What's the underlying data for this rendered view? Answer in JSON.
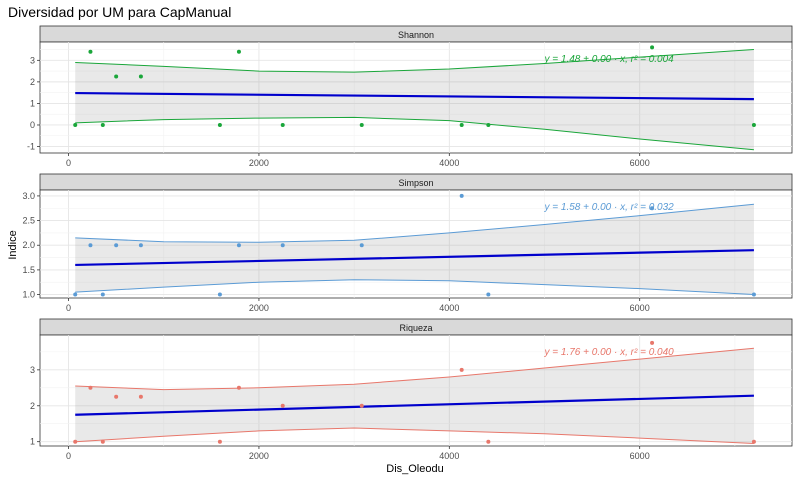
{
  "chart_data": {
    "type": "scatter",
    "title": "Diversidad por UM para CapManual",
    "xlabel": "Dis_Oleodu",
    "ylabel": "Indice",
    "xlim": [
      -300,
      7600
    ],
    "xticks": [
      0,
      2000,
      4000,
      6000
    ],
    "grid": true,
    "facets": [
      {
        "name": "Shannon",
        "color": "#1aa63a",
        "ylim": [
          -1.3,
          3.85
        ],
        "yticks": [
          -1,
          0,
          1,
          2,
          3
        ],
        "points": [
          [
            70,
            0
          ],
          [
            230,
            3.4
          ],
          [
            360,
            0
          ],
          [
            500,
            2.25
          ],
          [
            760,
            2.25
          ],
          [
            1590,
            0
          ],
          [
            1790,
            3.4
          ],
          [
            2250,
            0
          ],
          [
            3080,
            0
          ],
          [
            4130,
            0
          ],
          [
            4410,
            0
          ],
          [
            6130,
            3.6
          ],
          [
            7200,
            0
          ]
        ],
        "fit": {
          "x": [
            70,
            7200
          ],
          "y": [
            1.48,
            1.2
          ]
        },
        "band_upper": {
          "x": [
            70,
            1000,
            2000,
            3000,
            4000,
            5000,
            6000,
            7200
          ],
          "y": [
            2.9,
            2.72,
            2.5,
            2.45,
            2.6,
            2.85,
            3.15,
            3.5
          ]
        },
        "band_lower": {
          "x": [
            70,
            1000,
            2000,
            3000,
            4000,
            5000,
            6000,
            7200
          ],
          "y": [
            0.1,
            0.25,
            0.32,
            0.35,
            0.2,
            -0.2,
            -0.65,
            -1.15
          ]
        },
        "equation": "y = 1.48 + 0.00 · x,  r² = 0.004"
      },
      {
        "name": "Simpson",
        "color": "#5b9bd5",
        "ylim": [
          0.93,
          3.12
        ],
        "yticks": [
          1.0,
          1.5,
          2.0,
          2.5,
          3.0
        ],
        "points": [
          [
            70,
            1.0
          ],
          [
            230,
            2.0
          ],
          [
            360,
            1.0
          ],
          [
            500,
            2.0
          ],
          [
            760,
            2.0
          ],
          [
            1590,
            1.0
          ],
          [
            1790,
            2.0
          ],
          [
            2250,
            2.0
          ],
          [
            3080,
            2.0
          ],
          [
            4130,
            3.0
          ],
          [
            4410,
            1.0
          ],
          [
            6130,
            2.75
          ],
          [
            7200,
            1.0
          ]
        ],
        "fit": {
          "x": [
            70,
            7200
          ],
          "y": [
            1.6,
            1.9
          ]
        },
        "band_upper": {
          "x": [
            70,
            1000,
            2000,
            3000,
            4000,
            5000,
            6000,
            7200
          ],
          "y": [
            2.15,
            2.07,
            2.06,
            2.1,
            2.25,
            2.42,
            2.6,
            2.83
          ]
        },
        "band_lower": {
          "x": [
            70,
            1000,
            2000,
            3000,
            4000,
            5000,
            6000,
            7200
          ],
          "y": [
            1.05,
            1.15,
            1.25,
            1.3,
            1.28,
            1.2,
            1.12,
            1.0
          ]
        },
        "equation": "y = 1.58 + 0.00 · x,  r² = 0.032"
      },
      {
        "name": "Riqueza",
        "color": "#e8776b",
        "ylim": [
          0.88,
          3.97
        ],
        "yticks": [
          1,
          2,
          3
        ],
        "points": [
          [
            70,
            1.0
          ],
          [
            230,
            2.5
          ],
          [
            360,
            1.0
          ],
          [
            500,
            2.25
          ],
          [
            760,
            2.25
          ],
          [
            1590,
            1.0
          ],
          [
            1790,
            2.5
          ],
          [
            2250,
            2.0
          ],
          [
            3080,
            2.0
          ],
          [
            4130,
            3.0
          ],
          [
            4410,
            1.0
          ],
          [
            6130,
            3.75
          ],
          [
            7200,
            1.0
          ]
        ],
        "fit": {
          "x": [
            70,
            7200
          ],
          "y": [
            1.75,
            2.28
          ]
        },
        "band_upper": {
          "x": [
            70,
            1000,
            2000,
            3000,
            4000,
            5000,
            6000,
            7200
          ],
          "y": [
            2.55,
            2.45,
            2.5,
            2.6,
            2.8,
            3.05,
            3.3,
            3.6
          ]
        },
        "band_lower": {
          "x": [
            70,
            1000,
            2000,
            3000,
            4000,
            5000,
            6000,
            7200
          ],
          "y": [
            1.0,
            1.15,
            1.3,
            1.38,
            1.3,
            1.22,
            1.1,
            0.95
          ]
        },
        "equation": "y = 1.76 + 0.00 · x,  r² = 0.040"
      }
    ]
  }
}
